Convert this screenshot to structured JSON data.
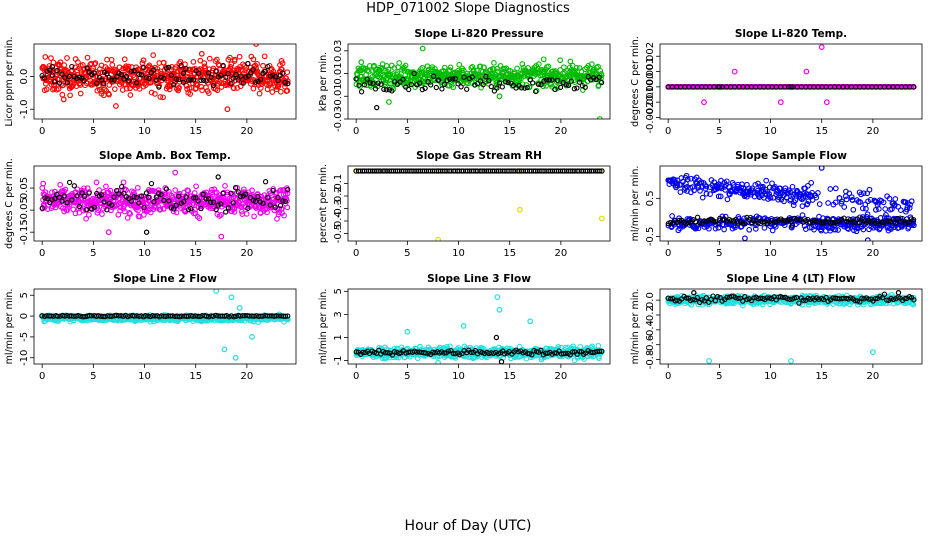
{
  "figure": {
    "title": "HDP_071002  Slope Diagnostics",
    "xlabel": "Hour of Day (UTC)"
  },
  "chart_data": [
    {
      "type": "scatter",
      "title": "Slope Li-820 CO2",
      "ylabel": "Licor ppm per min.",
      "xlim": [
        -0.8,
        24.8
      ],
      "ylim": [
        -1.3,
        1.0
      ],
      "x_ticks": [
        0,
        5,
        10,
        15,
        20
      ],
      "y_ticks": [
        -1.0,
        0.0
      ],
      "y_tick_labels": [
        "-1.0",
        "0.0"
      ],
      "series": [
        {
          "color": "#ff0000",
          "n": 640,
          "x_range": [
            0,
            24
          ],
          "center": 0.0,
          "spread": 0.45,
          "samples": [
            [
              0.3,
              0.6
            ],
            [
              2.1,
              -0.7
            ],
            [
              4.8,
              0.4
            ],
            [
              7.2,
              -0.9
            ],
            [
              9.9,
              0.5
            ],
            [
              12.4,
              -0.3
            ],
            [
              15.6,
              0.7
            ],
            [
              18.1,
              -1.0
            ],
            [
              20.9,
              1.0
            ],
            [
              23.7,
              -0.2
            ]
          ]
        },
        {
          "color": "#000000",
          "n": 100,
          "x_range": [
            0,
            24
          ],
          "center": 0.0,
          "spread": 0.25,
          "samples": [
            [
              1.0,
              0.3
            ],
            [
              6.0,
              -0.2
            ],
            [
              13.8,
              0.1
            ],
            [
              20.1,
              0.4
            ]
          ]
        }
      ]
    },
    {
      "type": "scatter",
      "title": "Slope Li-820 Pressure",
      "ylabel": "kPa per min.",
      "xlim": [
        -0.8,
        24.8
      ],
      "ylim": [
        -0.03,
        0.036
      ],
      "x_ticks": [
        0,
        5,
        10,
        15,
        20
      ],
      "y_ticks": [
        -0.03,
        -0.01,
        0.01,
        0.03
      ],
      "y_tick_labels": [
        "-0.03",
        "-0.01",
        "0.01",
        "0.03"
      ],
      "series": [
        {
          "color": "#00bb00",
          "n": 560,
          "x_range": [
            0,
            24
          ],
          "center": 0.008,
          "spread": 0.009,
          "samples": [
            [
              0.5,
              0.02
            ],
            [
              3.2,
              -0.015
            ],
            [
              6.5,
              0.032
            ],
            [
              9.8,
              0.005
            ],
            [
              14.0,
              -0.01
            ],
            [
              19.5,
              0.01
            ],
            [
              23.8,
              -0.03
            ]
          ]
        },
        {
          "color": "#000000",
          "n": 90,
          "x_range": [
            0,
            24
          ],
          "center": 0.002,
          "spread": 0.006,
          "samples": [
            [
              2.0,
              -0.02
            ],
            [
              8.0,
              0.004
            ]
          ]
        }
      ]
    },
    {
      "type": "scatter",
      "title": "Slope Li-820 Temp.",
      "ylabel": "degrees C per min.",
      "xlim": [
        -0.8,
        24.8
      ],
      "ylim": [
        -0.0021,
        0.0028
      ],
      "x_ticks": [
        0,
        5,
        10,
        15,
        20
      ],
      "y_ticks": [
        -0.002,
        -0.001,
        0.0,
        0.001,
        0.002
      ],
      "y_tick_labels": [
        "-0.002",
        "-0.001",
        "0.000",
        "0.001",
        "0.002"
      ],
      "series": [
        {
          "color": "#ee00ee",
          "n": 200,
          "x_range": [
            0,
            24
          ],
          "center": 0.0,
          "spread": 0.0,
          "samples": [
            [
              3.5,
              -0.001
            ],
            [
              6.5,
              0.001
            ],
            [
              11.0,
              -0.001
            ],
            [
              13.5,
              0.001
            ],
            [
              15.0,
              0.0026
            ],
            [
              15.5,
              -0.001
            ]
          ]
        },
        {
          "color": "#000000",
          "n": 60,
          "x_range": [
            0,
            24
          ],
          "center": 0.0,
          "spread": 0.0,
          "samples": [
            [
              5.0,
              0.0
            ],
            [
              12.0,
              0.0
            ]
          ]
        }
      ]
    },
    {
      "type": "scatter",
      "title": "Slope Amb. Box Temp.",
      "ylabel": "degrees C per min.",
      "xlim": [
        -0.8,
        24.8
      ],
      "ylim": [
        -0.19,
        0.15
      ],
      "x_ticks": [
        0,
        5,
        10,
        15,
        20
      ],
      "y_ticks": [
        -0.15,
        -0.05,
        0.05
      ],
      "y_tick_labels": [
        "-0.15",
        "-0.05",
        "0.05"
      ],
      "series": [
        {
          "color": "#ee00ee",
          "n": 620,
          "x_range": [
            0,
            24
          ],
          "center": -0.01,
          "spread": 0.055,
          "samples": [
            [
              0.1,
              0.07
            ],
            [
              6.5,
              -0.15
            ],
            [
              13.0,
              0.12
            ],
            [
              17.5,
              -0.17
            ],
            [
              23.9,
              0.05
            ]
          ]
        },
        {
          "color": "#000000",
          "n": 100,
          "x_range": [
            0,
            24
          ],
          "center": 0.0,
          "spread": 0.05,
          "samples": [
            [
              10.2,
              -0.15
            ],
            [
              17.2,
              0.1
            ]
          ]
        }
      ]
    },
    {
      "type": "scatter",
      "title": "Slope Gas Stream RH",
      "ylabel": "percent per min.",
      "xlim": [
        -0.8,
        24.8
      ],
      "ylim": [
        -0.56,
        0.04
      ],
      "x_ticks": [
        0,
        5,
        10,
        15,
        20
      ],
      "y_ticks": [
        -0.5,
        -0.4,
        -0.3,
        -0.2,
        -0.1
      ],
      "y_tick_labels": [
        "-0.5",
        "-0.4",
        "-0.3",
        "-0.2",
        "-0.1"
      ],
      "series": [
        {
          "color": "#dddd00",
          "n": 4,
          "x_range": [
            0,
            24
          ],
          "center": 0.0,
          "spread": 0.0,
          "samples": [
            [
              0.0,
              0.0
            ],
            [
              8.0,
              -0.55
            ],
            [
              16.0,
              -0.31
            ],
            [
              24.0,
              -0.38
            ]
          ]
        },
        {
          "color": "#000000",
          "n": 120,
          "x_range": [
            0,
            24
          ],
          "center": 0.0,
          "spread": 0.0,
          "samples": []
        }
      ]
    },
    {
      "type": "scatter",
      "title": "Slope Sample Flow",
      "ylabel": "ml/min per min.",
      "xlim": [
        -0.8,
        24.8
      ],
      "ylim": [
        -0.62,
        1.35
      ],
      "x_ticks": [
        0,
        5,
        10,
        15,
        20
      ],
      "y_ticks": [
        -0.5,
        0.5
      ],
      "y_tick_labels": [
        "-0.5",
        "0.5"
      ],
      "series": [
        {
          "color": "#0000ee",
          "n": 620,
          "x_range": [
            0,
            24
          ],
          "center": 0.0,
          "spread": 0.25,
          "samples": [
            [
              0.5,
              1.0
            ],
            [
              7.5,
              -0.55
            ],
            [
              15.0,
              1.3
            ],
            [
              19.5,
              -0.6
            ],
            [
              20.3,
              0.2
            ]
          ]
        },
        {
          "color": "#000000",
          "n": 110,
          "x_range": [
            0,
            24
          ],
          "center": -0.1,
          "spread": 0.08,
          "samples": [
            [
              12.0,
              -0.1
            ]
          ]
        }
      ]
    },
    {
      "type": "scatter",
      "title": "Slope Line 2 Flow",
      "ylabel": "ml/min per min.",
      "xlim": [
        -0.8,
        24.8
      ],
      "ylim": [
        -11.5,
        6.5
      ],
      "x_ticks": [
        0,
        5,
        10,
        15,
        20
      ],
      "y_ticks": [
        -10,
        -5,
        0,
        5
      ],
      "y_tick_labels": [
        "-10",
        "-5",
        "0",
        "5"
      ],
      "series": [
        {
          "color": "#22e0e0",
          "n": 560,
          "x_range": [
            0,
            24
          ],
          "center": -0.5,
          "spread": 0.6,
          "samples": [
            [
              17.0,
              6.0
            ],
            [
              17.8,
              -8.0
            ],
            [
              18.5,
              4.5
            ],
            [
              18.9,
              -10.0
            ],
            [
              19.3,
              2.0
            ],
            [
              20.5,
              -5.0
            ]
          ]
        },
        {
          "color": "#000000",
          "n": 110,
          "x_range": [
            0,
            24
          ],
          "center": 0.0,
          "spread": 0.15,
          "samples": []
        }
      ]
    },
    {
      "type": "scatter",
      "title": "Slope Line 3 Flow",
      "ylabel": "ml/min per min.",
      "xlim": [
        -0.8,
        24.8
      ],
      "ylim": [
        -1.3,
        5.2
      ],
      "x_ticks": [
        0,
        5,
        10,
        15,
        20
      ],
      "y_ticks": [
        -1,
        1,
        3,
        5
      ],
      "y_tick_labels": [
        "-1",
        "1",
        "3",
        "5"
      ],
      "series": [
        {
          "color": "#22e0e0",
          "n": 560,
          "x_range": [
            0,
            24
          ],
          "center": -0.3,
          "spread": 0.45,
          "samples": [
            [
              13.8,
              4.5
            ],
            [
              14.0,
              3.4
            ],
            [
              10.5,
              2.0
            ],
            [
              17.0,
              2.4
            ],
            [
              5.0,
              1.5
            ],
            [
              8.0,
              -1.2
            ]
          ]
        },
        {
          "color": "#000000",
          "n": 110,
          "x_range": [
            0,
            24
          ],
          "center": -0.3,
          "spread": 0.2,
          "samples": [
            [
              14.2,
              -1.1
            ],
            [
              13.7,
              1.0
            ]
          ]
        }
      ]
    },
    {
      "type": "scatter",
      "title": "Slope Line 4 (LT) Flow",
      "ylabel": "ml/min per min.",
      "xlim": [
        -0.8,
        24.8
      ],
      "ylim": [
        -0.86,
        0.15
      ],
      "x_ticks": [
        0,
        5,
        10,
        15,
        20
      ],
      "y_ticks": [
        -0.8,
        -0.6,
        -0.4,
        -0.2,
        0.0
      ],
      "y_tick_labels": [
        "-0.8",
        "-0.6",
        "-0.4",
        "-0.2",
        "0.0"
      ],
      "series": [
        {
          "color": "#22e0e0",
          "n": 560,
          "x_range": [
            0,
            24
          ],
          "center": 0.0,
          "spread": 0.05,
          "samples": [
            [
              4.0,
              -0.82
            ],
            [
              12.0,
              -0.82
            ],
            [
              20.0,
              -0.7
            ]
          ]
        },
        {
          "color": "#000000",
          "n": 110,
          "x_range": [
            0,
            24
          ],
          "center": 0.02,
          "spread": 0.04,
          "samples": [
            [
              2.5,
              0.1
            ],
            [
              22.5,
              0.1
            ]
          ]
        }
      ]
    }
  ]
}
